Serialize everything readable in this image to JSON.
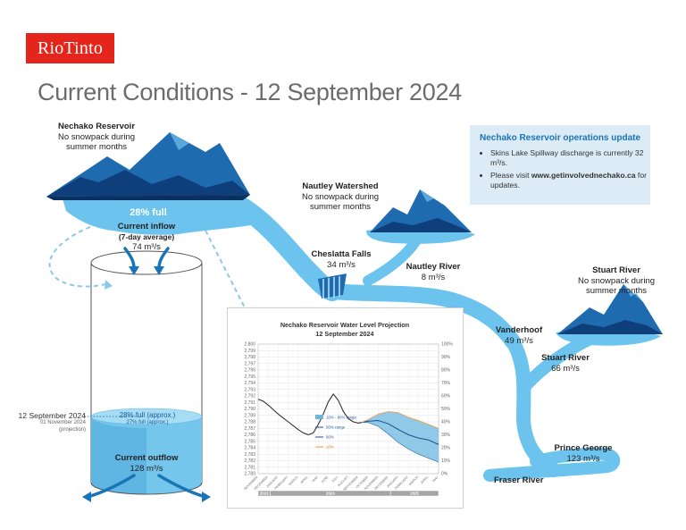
{
  "brand": {
    "logo_text": "RioTinto",
    "logo_color": "#e4251b"
  },
  "title": "Current Conditions - 12 September 2024",
  "nechako_reservoir": {
    "name": "Nechako Reservoir",
    "desc_line1": "No snowpack during",
    "desc_line2": "summer months",
    "percent_full": "28% full",
    "inflow_label_line1": "Current inflow",
    "inflow_label_line2": "(7-day average)",
    "inflow_value": "74 m³/s"
  },
  "nautley_watershed": {
    "name": "Nautley Watershed",
    "desc_line1": "No snowpack during",
    "desc_line2": "summer months"
  },
  "cheslatta_falls": {
    "name": "Cheslatta Falls",
    "value": "34 m³/s"
  },
  "nautley_river": {
    "name": "Nautley River",
    "value": "8 m³/s"
  },
  "stuart_watershed": {
    "name": "Stuart River",
    "desc_line1": "No snowpack during",
    "desc_line2": "summer months"
  },
  "vanderhoof": {
    "name": "Vanderhoof",
    "value": "49 m³/s"
  },
  "stuart_river": {
    "name": "Stuart River",
    "value": "66 m³/s"
  },
  "prince_george": {
    "name": "Prince George",
    "value": "123 m³/s"
  },
  "fraser_river": {
    "name": "Fraser River"
  },
  "cylinder": {
    "current_date": "12 September 2024",
    "projection_date": "01 November 2024",
    "projection_label": "(projection)",
    "current_level": "28% full (approx.)",
    "projection_level": "27% full (approx.)",
    "current_fill_fraction": 0.28,
    "outflow_label": "Current outflow",
    "outflow_value": "128 m³/s"
  },
  "info_box": {
    "title": "Nechako Reservoir operations update",
    "bullet1": "Skins Lake Spillway discharge is currently 32 m³/s.",
    "bullet2_prefix": "Please visit ",
    "bullet2_link": "www.getinvolvednechako.ca",
    "bullet2_suffix": " for updates."
  },
  "colors": {
    "river": "#6cc4ee",
    "mountain_dark": "#0f3f7a",
    "mountain_mid": "#1f6bb0",
    "title_gray": "#6c6c6c",
    "info_bg": "#dcebf5",
    "info_title": "#1a75b8",
    "band_blue": "#6cb7e0",
    "line_orange": "#f0a050",
    "line_dark": "#333333"
  },
  "chart_data": {
    "type": "line",
    "title": "Nechako Reservoir Water Level Projection",
    "subtitle": "12 September 2024",
    "ylim_left": [
      2780,
      2800
    ],
    "ylim_right": [
      0,
      100
    ],
    "left_ticks": [
      "2,800",
      "2,799",
      "2,798",
      "2,797",
      "2,796",
      "2,795",
      "2,794",
      "2,793",
      "2,792",
      "2,791",
      "2,790",
      "2,789",
      "2,788",
      "2,787",
      "2,786",
      "2,785",
      "2,784",
      "2,783",
      "2,782",
      "2,781",
      "2,780"
    ],
    "right_ticks": [
      "100%",
      "90%",
      "80%",
      "70%",
      "60%",
      "50%",
      "40%",
      "30%",
      "20%",
      "10%",
      "0%"
    ],
    "x_labels": [
      "NOVEMBER",
      "DECEMBER",
      "JANUARY",
      "FEBRUARY",
      "MARCH",
      "APRIL",
      "MAY",
      "JUNE",
      "JULY",
      "AUGUST",
      "SEPTEMBER",
      "OCTOBER",
      "NOVEMBER",
      "DECEMBER",
      "JANUARY",
      "FEBRUARY",
      "MARCH",
      "APRIL",
      "MAY"
    ],
    "year_labels": [
      "2023",
      "2024",
      "2025"
    ],
    "legend": [
      {
        "label": "10% - 90% range",
        "kind": "band"
      },
      {
        "label": "50% range",
        "kind": "line"
      },
      {
        "label": "90%",
        "kind": "line"
      },
      {
        "label": "10%",
        "kind": "orange"
      }
    ],
    "series": [
      {
        "name": "Observed",
        "x": [
          0,
          0.5,
          1,
          1.5,
          2,
          2.5,
          3,
          3.5,
          4,
          4.5,
          5,
          5.5,
          6,
          6.5,
          7,
          7.5,
          8,
          8.5,
          9,
          9.5,
          10,
          10.3
        ],
        "y": [
          2791.5,
          2791.2,
          2790.6,
          2789.9,
          2789.2,
          2788.6,
          2788.0,
          2787.4,
          2786.8,
          2786.3,
          2786.0,
          2786.3,
          2787.6,
          2789.2,
          2791.1,
          2792.3,
          2791.3,
          2789.6,
          2788.5,
          2788.0,
          2787.8,
          2787.9
        ]
      },
      {
        "name": "50%",
        "x": [
          10.3,
          11,
          12,
          13,
          14,
          15,
          16,
          17,
          18
        ],
        "y": [
          2787.9,
          2788.1,
          2788.2,
          2787.7,
          2786.8,
          2786.0,
          2785.5,
          2785.2,
          2784.5
        ]
      },
      {
        "name": "90%",
        "x": [
          10.3,
          11,
          12,
          13,
          14,
          15,
          16,
          17,
          18
        ],
        "y": [
          2787.9,
          2788.4,
          2789.2,
          2789.6,
          2789.4,
          2788.7,
          2788.2,
          2787.6,
          2787.0
        ]
      },
      {
        "name": "10%",
        "x": [
          10.3,
          11,
          12,
          13,
          14,
          15,
          16,
          17,
          18
        ],
        "y": [
          2787.9,
          2787.9,
          2787.3,
          2786.1,
          2784.8,
          2783.8,
          2783.0,
          2782.4,
          2781.8
        ]
      }
    ]
  }
}
